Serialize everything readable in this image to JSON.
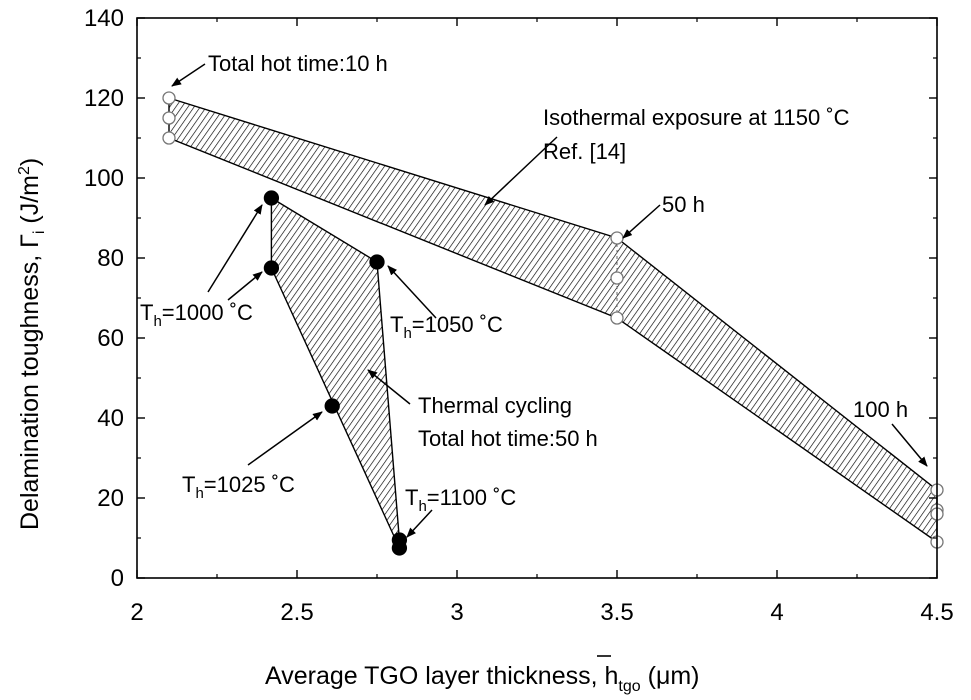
{
  "chart_data": {
    "type": "scatter",
    "xlabel": "Average TGO layer thickness, h̅tgo (μm)",
    "xlabel_parts": {
      "main": "Average TGO layer thickness, ",
      "symbol": "h",
      "sub": "tgo",
      "unit": " (μm)"
    },
    "ylabel": "Delamination toughness, Γi (J/m2)",
    "ylabel_parts": {
      "main": "Delamination toughness, ",
      "symbol": "Γ",
      "sub": "i",
      "unit_open": " (J/m",
      "unit_sup": "2",
      "unit_close": ")"
    },
    "xlim": [
      2,
      4.5
    ],
    "ylim": [
      0,
      140
    ],
    "xticks": [
      "2",
      "2.5",
      "3",
      "3.5",
      "4",
      "4.5"
    ],
    "yticks": [
      "0",
      "20",
      "40",
      "60",
      "80",
      "100",
      "120",
      "140"
    ],
    "grid": false,
    "series": [
      {
        "marker": "open-circle",
        "points": [
          {
            "x": 2.1,
            "y": 120
          },
          {
            "x": 2.1,
            "y": 115
          },
          {
            "x": 2.1,
            "y": 110
          },
          {
            "x": 3.5,
            "y": 85
          },
          {
            "x": 3.5,
            "y": 75
          },
          {
            "x": 3.5,
            "y": 65
          },
          {
            "x": 4.5,
            "y": 22
          },
          {
            "x": 4.5,
            "y": 17
          },
          {
            "x": 4.5,
            "y": 16
          },
          {
            "x": 4.5,
            "y": 9
          }
        ]
      },
      {
        "marker": "filled-circle",
        "points": [
          {
            "x": 2.42,
            "y": 95
          },
          {
            "x": 2.42,
            "y": 77.5
          },
          {
            "x": 2.75,
            "y": 79
          },
          {
            "x": 2.61,
            "y": 43
          },
          {
            "x": 2.82,
            "y": 9.5
          },
          {
            "x": 2.82,
            "y": 7.5
          }
        ]
      }
    ],
    "bands": [
      {
        "name": "isothermal",
        "polygon": [
          [
            2.1,
            120
          ],
          [
            3.5,
            85
          ],
          [
            4.5,
            22
          ],
          [
            4.5,
            9
          ],
          [
            3.5,
            65
          ],
          [
            2.1,
            110
          ]
        ]
      },
      {
        "name": "cycling",
        "polygon": [
          [
            2.42,
            95
          ],
          [
            2.75,
            79
          ],
          [
            2.82,
            9.5
          ],
          [
            2.82,
            7.5
          ],
          [
            2.42,
            77.5
          ]
        ]
      }
    ],
    "annotations": [
      {
        "text": "Total hot time:10 h"
      },
      {
        "text": "Isothermal exposure at 1150 ˚C"
      },
      {
        "text": "Ref. [14]"
      },
      {
        "text": "50 h"
      },
      {
        "text": "100 h"
      },
      {
        "text": "Thermal cycling"
      },
      {
        "text": "Total hot time:50 h"
      },
      {
        "text_main": "T",
        "text_sub": "h",
        "text_rest": "=1000 ˚C"
      },
      {
        "text_main": "T",
        "text_sub": "h",
        "text_rest": "=1050 ˚C"
      },
      {
        "text_main": "T",
        "text_sub": "h",
        "text_rest": "=1025 ˚C"
      },
      {
        "text_main": "T",
        "text_sub": "h",
        "text_rest": "=1100 ˚C"
      }
    ]
  }
}
